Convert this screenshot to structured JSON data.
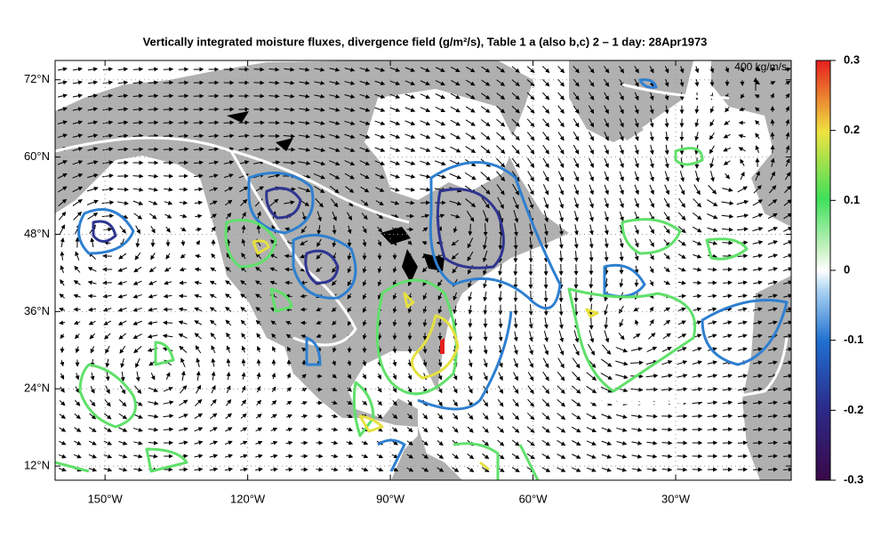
{
  "title": "Vertically integrated moisture fluxes, divergence field (g/m²/s), Table 1 a (also b,c) 2 – 1 day: 28Apr1973",
  "map": {
    "xlim": [
      -160.5,
      -5.7
    ],
    "ylim": [
      9.8,
      75
    ],
    "lat_ticks": [
      {
        "value": 12,
        "label": "12°N"
      },
      {
        "value": 24,
        "label": "24°N"
      },
      {
        "value": 36,
        "label": "36°N"
      },
      {
        "value": 48,
        "label": "48°N"
      },
      {
        "value": 60,
        "label": "60°N"
      },
      {
        "value": 72,
        "label": "72°N"
      }
    ],
    "lon_ticks": [
      {
        "value": -150,
        "label": "150°W"
      },
      {
        "value": -120,
        "label": "120°W"
      },
      {
        "value": -90,
        "label": "90°W"
      },
      {
        "value": -60,
        "label": "60°W"
      },
      {
        "value": -30,
        "label": "30°W"
      }
    ],
    "grid": true
  },
  "colorbar": {
    "zlim": [
      -0.3,
      0.3
    ],
    "ticks": [
      -0.3,
      -0.2,
      -0.1,
      0,
      0.1,
      0.2,
      0.3
    ]
  },
  "reference_vector": "400  kg/m/s"
}
